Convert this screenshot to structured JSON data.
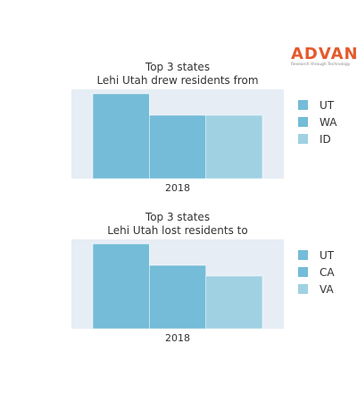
{
  "logo": {
    "text": "ADVAN",
    "tagline": "Research through Technology"
  },
  "colors": {
    "bar1": "#74bcd7",
    "bar2": "#74bcd7",
    "bar3": "#9fd1e3",
    "plot_bg": "#e6edf5"
  },
  "chart_data": [
    {
      "type": "bar",
      "title_line1": "Top 3 states",
      "title_line2": "Lehi Utah drew residents from",
      "xlabel": "2018",
      "series": [
        {
          "name": "UT",
          "values": [
            0.95
          ]
        },
        {
          "name": "WA",
          "values": [
            0.71
          ]
        },
        {
          "name": "ID",
          "values": [
            0.71
          ]
        }
      ],
      "ylim": [
        0,
        1
      ],
      "legend": "right"
    },
    {
      "type": "bar",
      "title_line1": "Top 3 states",
      "title_line2": "Lehi Utah lost residents to",
      "xlabel": "2018",
      "series": [
        {
          "name": "UT",
          "values": [
            0.95
          ]
        },
        {
          "name": "CA",
          "values": [
            0.71
          ]
        },
        {
          "name": "VA",
          "values": [
            0.59
          ]
        }
      ],
      "ylim": [
        0,
        1
      ],
      "legend": "right"
    }
  ]
}
